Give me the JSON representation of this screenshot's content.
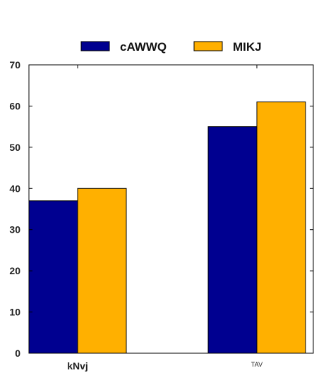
{
  "chart_data": {
    "type": "bar",
    "categories": [
      "kNvj",
      "TAV"
    ],
    "series": [
      {
        "name": "cAWWQ",
        "values": [
          37,
          55
        ],
        "color": "#000090"
      },
      {
        "name": "MIKJ",
        "values": [
          40,
          61
        ],
        "color": "#ffb000"
      }
    ],
    "ylim": [
      0,
      70
    ],
    "yticks": [
      0,
      10,
      20,
      30,
      40,
      50,
      60,
      70
    ],
    "legend": "top-center",
    "grid": false,
    "title": "",
    "xlabel": "",
    "ylabel": ""
  }
}
